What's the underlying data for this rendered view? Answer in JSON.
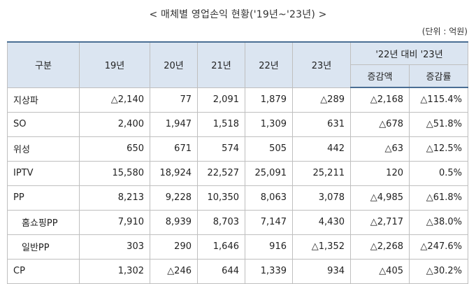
{
  "title": "< 매체별 영업손익 현황('19년~'23년) >",
  "unit": "(단위 : 억원)",
  "table": {
    "header": {
      "category": "구분",
      "years": [
        "19년",
        "20년",
        "21년",
        "22년",
        "23년"
      ],
      "comparison": "'22년 대비 '23년",
      "change_amount": "증감액",
      "change_rate": "증감률"
    },
    "rows": [
      {
        "label": "지상파",
        "indent": false,
        "values": [
          "△2,140",
          "77",
          "2,091",
          "1,879",
          "△289",
          "△2,168",
          "△115.4%"
        ]
      },
      {
        "label": "SO",
        "indent": false,
        "values": [
          "2,400",
          "1,947",
          "1,518",
          "1,309",
          "631",
          "△678",
          "△51.8%"
        ]
      },
      {
        "label": "위성",
        "indent": false,
        "values": [
          "650",
          "671",
          "574",
          "505",
          "442",
          "△63",
          "△12.5%"
        ]
      },
      {
        "label": "IPTV",
        "indent": false,
        "values": [
          "15,580",
          "18,924",
          "22,527",
          "25,091",
          "25,211",
          "120",
          "0.5%"
        ]
      },
      {
        "label": "PP",
        "indent": false,
        "values": [
          "8,213",
          "9,228",
          "10,350",
          "8,063",
          "3,078",
          "△4,985",
          "△61.8%"
        ]
      },
      {
        "label": "홈쇼핑PP",
        "indent": true,
        "values": [
          "7,910",
          "8,939",
          "8,703",
          "7,147",
          "4,430",
          "△2,717",
          "△38.0%"
        ]
      },
      {
        "label": "일반PP",
        "indent": true,
        "values": [
          "303",
          "290",
          "1,646",
          "916",
          "△1,352",
          "△2,268",
          "△247.6%"
        ]
      },
      {
        "label": "CP",
        "indent": false,
        "values": [
          "1,302",
          "△246",
          "644",
          "1,339",
          "934",
          "△405",
          "△30.2%"
        ]
      }
    ]
  },
  "colors": {
    "header_bg": "#dbe5f1",
    "header_rule": "#4a6e94",
    "grid_line": "#bfbfbf"
  }
}
